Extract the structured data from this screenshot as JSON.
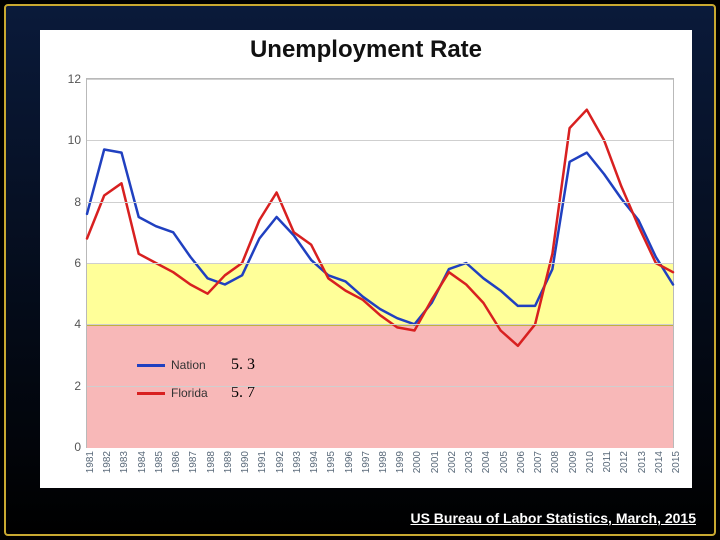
{
  "frame": {
    "outer_border_color": "#c9a931",
    "background_top": "#0a1a3a",
    "background_bottom": "#000000"
  },
  "chart": {
    "type": "line",
    "title": "Unemployment Rate",
    "title_fontsize": 24,
    "title_color": "#111111",
    "card_bg": "#ffffff",
    "plot_border_color": "#b9b9b9",
    "grid_color": "#cfcfcf",
    "ylim": [
      0,
      12
    ],
    "ytick_step": 2,
    "yticks": [
      "0",
      "2",
      "4",
      "6",
      "8",
      "10",
      "12"
    ],
    "years": [
      "1981",
      "1982",
      "1983",
      "1984",
      "1985",
      "1986",
      "1987",
      "1988",
      "1989",
      "1990",
      "1991",
      "1992",
      "1993",
      "1994",
      "1995",
      "1996",
      "1997",
      "1998",
      "1999",
      "2000",
      "2001",
      "2002",
      "2003",
      "2004",
      "2005",
      "2006",
      "2007",
      "2008",
      "2009",
      "2010",
      "2011",
      "2012",
      "2013",
      "2014",
      "2015"
    ],
    "bands": {
      "yellow": {
        "from": 4,
        "to": 6,
        "fill": "#ffff99",
        "border": "#c0b040"
      },
      "pink": {
        "from": 0,
        "to": 4,
        "fill": "#f8b8b8",
        "border": "#d09090"
      }
    },
    "series": [
      {
        "name": "Nation",
        "color": "#2040c0",
        "width": 2.5,
        "values": [
          7.6,
          9.7,
          9.6,
          7.5,
          7.2,
          7.0,
          6.2,
          5.5,
          5.3,
          5.6,
          6.8,
          7.5,
          6.9,
          6.1,
          5.6,
          5.4,
          4.9,
          4.5,
          4.2,
          4.0,
          4.7,
          5.8,
          6.0,
          5.5,
          5.1,
          4.6,
          4.6,
          5.8,
          9.3,
          9.6,
          8.9,
          8.1,
          7.4,
          6.2,
          5.3
        ]
      },
      {
        "name": "Florida",
        "color": "#d82020",
        "width": 2.5,
        "values": [
          6.8,
          8.2,
          8.6,
          6.3,
          6.0,
          5.7,
          5.3,
          5.0,
          5.6,
          6.0,
          7.4,
          8.3,
          7.0,
          6.6,
          5.5,
          5.1,
          4.8,
          4.3,
          3.9,
          3.8,
          4.8,
          5.7,
          5.3,
          4.7,
          3.8,
          3.3,
          4.0,
          6.3,
          10.4,
          11.0,
          10.0,
          8.5,
          7.2,
          6.0,
          5.7
        ]
      }
    ],
    "legend": {
      "items": [
        {
          "label": "Nation",
          "color": "#2040c0",
          "value": "5. 3"
        },
        {
          "label": "Florida",
          "color": "#d82020",
          "value": "5. 7"
        }
      ]
    },
    "tick_label_color": "#5a6a7a",
    "tick_label_fontsize_y": 12,
    "tick_label_fontsize_x": 10
  },
  "source_note": "US Bureau of Labor Statistics, March, 2015"
}
